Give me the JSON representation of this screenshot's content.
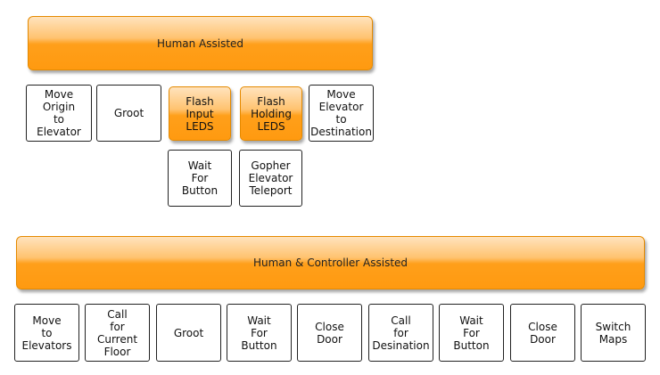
{
  "groups": [
    {
      "title": "Human Assisted",
      "nodes": [
        "Move\nOrigin\nto\nElevator",
        "Groot",
        "Flash\nInput\nLEDS",
        "Flash\nHolding\nLEDS",
        "Move\nElevator\nto\nDestination",
        "Wait\nFor\nButton",
        "Gopher\nElevator\nTeleport"
      ]
    },
    {
      "title": "Human & Controller Assisted",
      "nodes": [
        "Move\nto\nElevators",
        "Call\nfor\nCurrent\nFloor",
        "Groot",
        "Wait\nFor\nButton",
        "Close\nDoor",
        "Call\nfor\nDesination",
        "Wait\nFor\nButton",
        "Close\nDoor",
        "Switch\nMaps"
      ]
    }
  ],
  "colors": {
    "highlight": "#ff9f1a",
    "highlight_border": "#e58a00",
    "node_border": "#222222"
  }
}
